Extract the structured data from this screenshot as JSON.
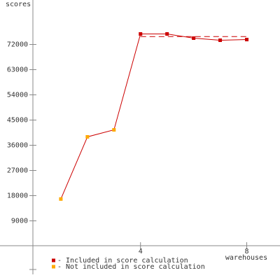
{
  "chart_data": {
    "type": "line",
    "y_label": "scores",
    "x_label": "warehouses",
    "x": [
      1,
      2,
      3,
      4,
      5,
      6,
      7,
      8
    ],
    "values": [
      16800,
      39000,
      41500,
      75750,
      75750,
      74250,
      73500,
      73750
    ],
    "line_color": "#cc0000",
    "marker_colors": [
      "#ffaa00",
      "#ffaa00",
      "#ffaa00",
      "#cc0000",
      "#cc0000",
      "#cc0000",
      "#cc0000",
      "#cc0000"
    ],
    "reference_value": 74800,
    "reference_x": [
      4,
      8
    ],
    "xlim": [
      0,
      9.2
    ],
    "xticks": [
      4,
      8
    ],
    "ylim": [
      -10000,
      87000
    ],
    "yticks": [
      9000,
      18000,
      27000,
      36000,
      45000,
      54000,
      63000,
      72000
    ],
    "legend": [
      {
        "name": "- Included in score calculation",
        "color": "#cc0000"
      },
      {
        "name": "- Not included in score calculation",
        "color": "#ffaa00"
      }
    ]
  }
}
